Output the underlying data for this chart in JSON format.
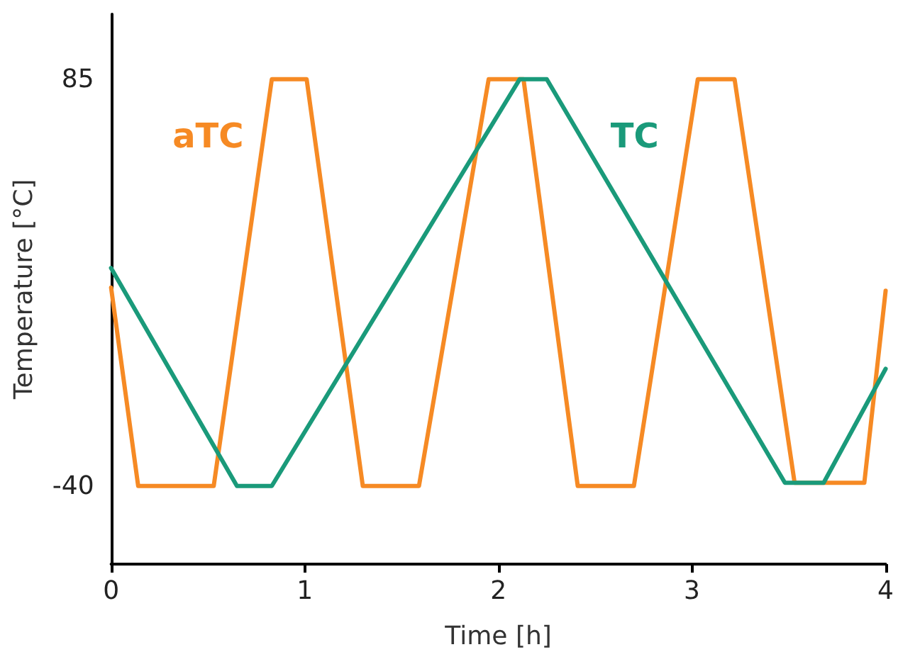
{
  "chart_data": {
    "type": "line",
    "xlabel": "Time [h]",
    "ylabel": "Temperature [°C]",
    "xlim": [
      0,
      4
    ],
    "xticks": [
      0,
      1,
      2,
      3,
      4
    ],
    "ylim": [
      -64,
      105
    ],
    "yticks": [
      -40,
      85
    ],
    "grid": false,
    "legend": false,
    "marker": "none",
    "line_style": "solid",
    "series": [
      {
        "name": "aTC",
        "color": "#f68a24",
        "x": [
          0,
          0.14,
          0.53,
          0.83,
          1.01,
          1.3,
          1.59,
          1.95,
          2.13,
          2.41,
          2.7,
          3.03,
          3.22,
          3.53,
          3.89,
          4
        ],
        "values": [
          21,
          -40,
          -40,
          85,
          85,
          -40,
          -40,
          85,
          85,
          -40,
          -40,
          85,
          85,
          -39,
          -39,
          20
        ]
      },
      {
        "name": "TC",
        "color": "#1a9a7a",
        "x": [
          0,
          0.65,
          0.83,
          2.11,
          2.25,
          3.48,
          3.68,
          4
        ],
        "values": [
          27,
          -40,
          -40,
          85,
          85,
          -39,
          -39,
          -4
        ]
      }
    ]
  }
}
